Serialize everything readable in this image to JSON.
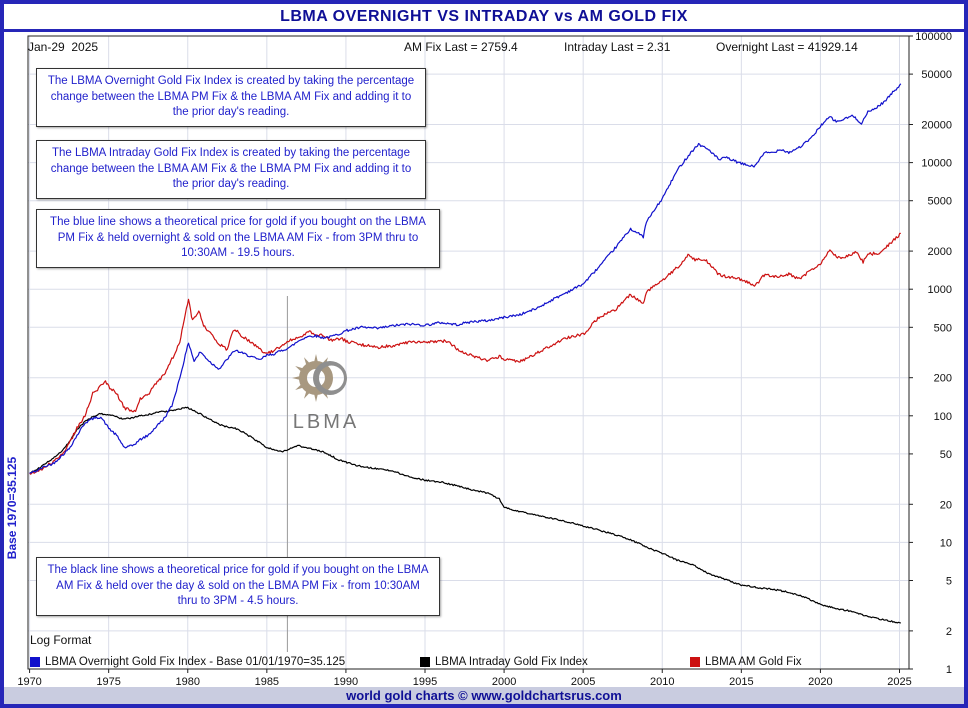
{
  "page": {
    "title": "LBMA OVERNIGHT VS INTRADAY vs AM GOLD FIX",
    "footer": "world gold charts © www.goldchartsrus.com"
  },
  "info_bar": {
    "date": "Jan-29  2025",
    "am_fix_last": "AM Fix Last = 2759.4",
    "intraday_last": "Intraday Last = 2.31",
    "overnight_last": "Overnight Last = 41929.14"
  },
  "annotations": {
    "box_overnight": "The LBMA Overnight Gold Fix Index is created by taking the percentage change between the LBMA PM Fix & the LBMA AM Fix and adding it to the prior day's reading.",
    "box_intraday": "The LBMA Intraday Gold Fix Index is created by taking the percentage change between the LBMA AM Fix & the LBMA PM Fix and adding it to the prior day's reading.",
    "box_blue_line": "The blue line shows a theoretical price for gold if you bought on the LBMA PM Fix & held overnight & sold on the LBMA AM Fix - from 3PM thru to 10:30AM - 19.5 hours.",
    "box_black_line": "The black line shows a theoretical price for gold if you bought on the LBMA AM Fix & held over the day & sold on the LBMA PM Fix - from 10:30AM thru to 3PM - 4.5 hours.",
    "y_axis_left": "Base 1970=35.125",
    "log_format": "Log Format",
    "watermark": "LBMA"
  },
  "legend": [
    {
      "label": "LBMA Overnight Gold Fix Index - Base 01/01/1970=35.125",
      "color": "#1111cc"
    },
    {
      "label": "LBMA Intraday Gold Fix Index",
      "color": "#000000"
    },
    {
      "label": "LBMA AM Gold Fix",
      "color": "#cc1111"
    }
  ],
  "chart_data": {
    "type": "line",
    "title": "LBMA OVERNIGHT VS INTRADAY vs AM GOLD FIX",
    "scale": "log",
    "grid": true,
    "legend_position": "bottom",
    "x_axis": {
      "ticks": [
        1970,
        1975,
        1980,
        1985,
        1990,
        1995,
        2000,
        2005,
        2010,
        2015,
        2020,
        2025
      ],
      "range": [
        1969.9,
        2025.6
      ]
    },
    "y_axis": {
      "ticks": [
        1,
        2,
        5,
        10,
        20,
        50,
        100,
        200,
        500,
        1000,
        2000,
        5000,
        10000,
        20000,
        50000,
        100000
      ],
      "range": [
        1,
        100000
      ]
    },
    "cursor_year": 1986.3,
    "last_values": {
      "am_fix": 2759.4,
      "intraday": 2.31,
      "overnight": 41929.14
    },
    "series": [
      {
        "name": "LBMA Overnight Gold Fix Index",
        "color": "#1111cc",
        "points": [
          [
            1970,
            35.125
          ],
          [
            1970.5,
            37
          ],
          [
            1971,
            40
          ],
          [
            1971.5,
            42
          ],
          [
            1972,
            48
          ],
          [
            1972.5,
            55
          ],
          [
            1973,
            70
          ],
          [
            1973.5,
            88
          ],
          [
            1974,
            95
          ],
          [
            1974.5,
            98
          ],
          [
            1975,
            80
          ],
          [
            1975.5,
            70
          ],
          [
            1976,
            56
          ],
          [
            1976.5,
            58
          ],
          [
            1977,
            65
          ],
          [
            1977.5,
            70
          ],
          [
            1978,
            82
          ],
          [
            1978.5,
            95
          ],
          [
            1979,
            120
          ],
          [
            1979.5,
            200
          ],
          [
            1980.05,
            380
          ],
          [
            1980.4,
            270
          ],
          [
            1980.8,
            320
          ],
          [
            1981,
            300
          ],
          [
            1981.5,
            260
          ],
          [
            1982,
            235
          ],
          [
            1982.7,
            300
          ],
          [
            1983,
            330
          ],
          [
            1983.5,
            310
          ],
          [
            1984,
            295
          ],
          [
            1984.5,
            275
          ],
          [
            1985,
            300
          ],
          [
            1985.5,
            310
          ],
          [
            1986,
            330
          ],
          [
            1986.5,
            350
          ],
          [
            1987,
            390
          ],
          [
            1987.5,
            420
          ],
          [
            1988,
            430
          ],
          [
            1988.5,
            415
          ],
          [
            1989,
            420
          ],
          [
            1989.5,
            440
          ],
          [
            1990,
            470
          ],
          [
            1991,
            500
          ],
          [
            1992,
            490
          ],
          [
            1993,
            515
          ],
          [
            1994,
            530
          ],
          [
            1995,
            520
          ],
          [
            1996,
            545
          ],
          [
            1997,
            525
          ],
          [
            1998,
            555
          ],
          [
            1999,
            565
          ],
          [
            2000,
            600
          ],
          [
            2001,
            630
          ],
          [
            2002,
            700
          ],
          [
            2003,
            820
          ],
          [
            2004,
            950
          ],
          [
            2005,
            1100
          ],
          [
            2006,
            1500
          ],
          [
            2007,
            2100
          ],
          [
            2008,
            3000
          ],
          [
            2008.8,
            2600
          ],
          [
            2009,
            3400
          ],
          [
            2010,
            5200
          ],
          [
            2011,
            8900
          ],
          [
            2011.8,
            12000
          ],
          [
            2012.3,
            14000
          ],
          [
            2013,
            12500
          ],
          [
            2013.6,
            10500
          ],
          [
            2014,
            11000
          ],
          [
            2015,
            9800
          ],
          [
            2015.8,
            9300
          ],
          [
            2016.5,
            12000
          ],
          [
            2017,
            12000
          ],
          [
            2017.5,
            12800
          ],
          [
            2018,
            12000
          ],
          [
            2018.8,
            13500
          ],
          [
            2019.5,
            16000
          ],
          [
            2020,
            19500
          ],
          [
            2020.6,
            23000
          ],
          [
            2021,
            21000
          ],
          [
            2021.5,
            22000
          ],
          [
            2022,
            23500
          ],
          [
            2022.6,
            20500
          ],
          [
            2023,
            25000
          ],
          [
            2023.5,
            27000
          ],
          [
            2024,
            30000
          ],
          [
            2024.5,
            35000
          ],
          [
            2025.08,
            41929.14
          ]
        ]
      },
      {
        "name": "LBMA Intraday Gold Fix Index",
        "color": "#000000",
        "points": [
          [
            1970,
            35.125
          ],
          [
            1970.5,
            38
          ],
          [
            1971,
            42
          ],
          [
            1971.5,
            46
          ],
          [
            1972,
            52
          ],
          [
            1972.5,
            62
          ],
          [
            1973,
            78
          ],
          [
            1973.5,
            90
          ],
          [
            1974,
            98
          ],
          [
            1974.5,
            104
          ],
          [
            1975,
            102
          ],
          [
            1975.5,
            98
          ],
          [
            1976,
            94
          ],
          [
            1976.5,
            96
          ],
          [
            1977,
            100
          ],
          [
            1977.5,
            102
          ],
          [
            1978,
            106
          ],
          [
            1978.5,
            108
          ],
          [
            1979,
            110
          ],
          [
            1979.5,
            113
          ],
          [
            1980,
            116
          ],
          [
            1980.5,
            108
          ],
          [
            1981,
            100
          ],
          [
            1981.5,
            92
          ],
          [
            1982,
            85
          ],
          [
            1982.5,
            82
          ],
          [
            1983,
            80
          ],
          [
            1983.5,
            74
          ],
          [
            1984,
            68
          ],
          [
            1984.5,
            62
          ],
          [
            1985,
            56
          ],
          [
            1985.5,
            54
          ],
          [
            1986,
            52
          ],
          [
            1986.5,
            55
          ],
          [
            1987,
            58
          ],
          [
            1987.5,
            56
          ],
          [
            1988,
            54
          ],
          [
            1988.5,
            52
          ],
          [
            1989,
            49
          ],
          [
            1989.5,
            45
          ],
          [
            1990,
            43
          ],
          [
            1990.5,
            41
          ],
          [
            1991,
            40
          ],
          [
            1992,
            38
          ],
          [
            1993,
            36.5
          ],
          [
            1994,
            33
          ],
          [
            1995,
            31
          ],
          [
            1996,
            30
          ],
          [
            1997,
            28
          ],
          [
            1998,
            26
          ],
          [
            1999,
            24.5
          ],
          [
            1999.7,
            22
          ],
          [
            2000,
            19
          ],
          [
            2000.5,
            18
          ],
          [
            2001,
            17.5
          ],
          [
            2002,
            16.5
          ],
          [
            2003,
            15.5
          ],
          [
            2004,
            14.5
          ],
          [
            2005,
            13.5
          ],
          [
            2006,
            12.5
          ],
          [
            2007,
            11.5
          ],
          [
            2008,
            10.5
          ],
          [
            2009,
            9.2
          ],
          [
            2010,
            8.2
          ],
          [
            2011,
            7.2
          ],
          [
            2012,
            6.6
          ],
          [
            2013,
            5.6
          ],
          [
            2014,
            5.1
          ],
          [
            2015,
            4.6
          ],
          [
            2016,
            4.4
          ],
          [
            2017,
            4.25
          ],
          [
            2018,
            4.05
          ],
          [
            2019,
            3.7
          ],
          [
            2020,
            3.25
          ],
          [
            2021,
            3.0
          ],
          [
            2022,
            2.85
          ],
          [
            2023,
            2.6
          ],
          [
            2024,
            2.45
          ],
          [
            2025.08,
            2.31
          ]
        ]
      },
      {
        "name": "LBMA AM Gold Fix",
        "color": "#cc1111",
        "points": [
          [
            1970,
            35.125
          ],
          [
            1970.5,
            36
          ],
          [
            1971,
            40
          ],
          [
            1971.5,
            43
          ],
          [
            1972,
            49
          ],
          [
            1972.5,
            60
          ],
          [
            1973,
            80
          ],
          [
            1973.5,
            100
          ],
          [
            1974,
            150
          ],
          [
            1974.8,
            185
          ],
          [
            1975,
            170
          ],
          [
            1975.5,
            150
          ],
          [
            1976,
            115
          ],
          [
            1976.7,
            108
          ],
          [
            1977,
            135
          ],
          [
            1977.5,
            148
          ],
          [
            1978,
            180
          ],
          [
            1978.5,
            210
          ],
          [
            1979,
            280
          ],
          [
            1979.5,
            380
          ],
          [
            1980.05,
            850
          ],
          [
            1980.3,
            560
          ],
          [
            1980.7,
            670
          ],
          [
            1981,
            520
          ],
          [
            1981.5,
            440
          ],
          [
            1982,
            370
          ],
          [
            1982.5,
            330
          ],
          [
            1982.8,
            450
          ],
          [
            1983,
            480
          ],
          [
            1983.5,
            420
          ],
          [
            1984,
            380
          ],
          [
            1984.5,
            340
          ],
          [
            1985,
            310
          ],
          [
            1985.5,
            330
          ],
          [
            1986,
            360
          ],
          [
            1986.5,
            400
          ],
          [
            1987,
            420
          ],
          [
            1987.7,
            460
          ],
          [
            1988,
            440
          ],
          [
            1988.5,
            430
          ],
          [
            1989,
            395
          ],
          [
            1989.7,
            410
          ],
          [
            1990,
            390
          ],
          [
            1990.5,
            375
          ],
          [
            1991,
            365
          ],
          [
            1992,
            345
          ],
          [
            1993,
            360
          ],
          [
            1994,
            382
          ],
          [
            1995,
            385
          ],
          [
            1996,
            392
          ],
          [
            1996.5,
            385
          ],
          [
            1997,
            340
          ],
          [
            1998,
            295
          ],
          [
            1999,
            275
          ],
          [
            1999.7,
            295
          ],
          [
            2000,
            282
          ],
          [
            2001,
            268
          ],
          [
            2002,
            310
          ],
          [
            2003,
            360
          ],
          [
            2004,
            415
          ],
          [
            2005,
            440
          ],
          [
            2006,
            600
          ],
          [
            2007,
            680
          ],
          [
            2008,
            910
          ],
          [
            2008.8,
            760
          ],
          [
            2009,
            950
          ],
          [
            2010,
            1180
          ],
          [
            2011,
            1500
          ],
          [
            2011.7,
            1890
          ],
          [
            2012,
            1720
          ],
          [
            2012.8,
            1680
          ],
          [
            2013,
            1590
          ],
          [
            2013.5,
            1320
          ],
          [
            2014,
            1260
          ],
          [
            2015,
            1190
          ],
          [
            2015.9,
            1070
          ],
          [
            2016.5,
            1320
          ],
          [
            2017,
            1250
          ],
          [
            2018,
            1310
          ],
          [
            2018.7,
            1200
          ],
          [
            2019,
            1300
          ],
          [
            2019.7,
            1500
          ],
          [
            2020,
            1580
          ],
          [
            2020.6,
            2030
          ],
          [
            2021,
            1830
          ],
          [
            2021.3,
            1750
          ],
          [
            2022,
            1910
          ],
          [
            2022.2,
            2000
          ],
          [
            2022.7,
            1650
          ],
          [
            2023,
            1880
          ],
          [
            2023.8,
            1950
          ],
          [
            2024,
            2050
          ],
          [
            2024.5,
            2350
          ],
          [
            2025.08,
            2759.4
          ]
        ]
      }
    ]
  }
}
